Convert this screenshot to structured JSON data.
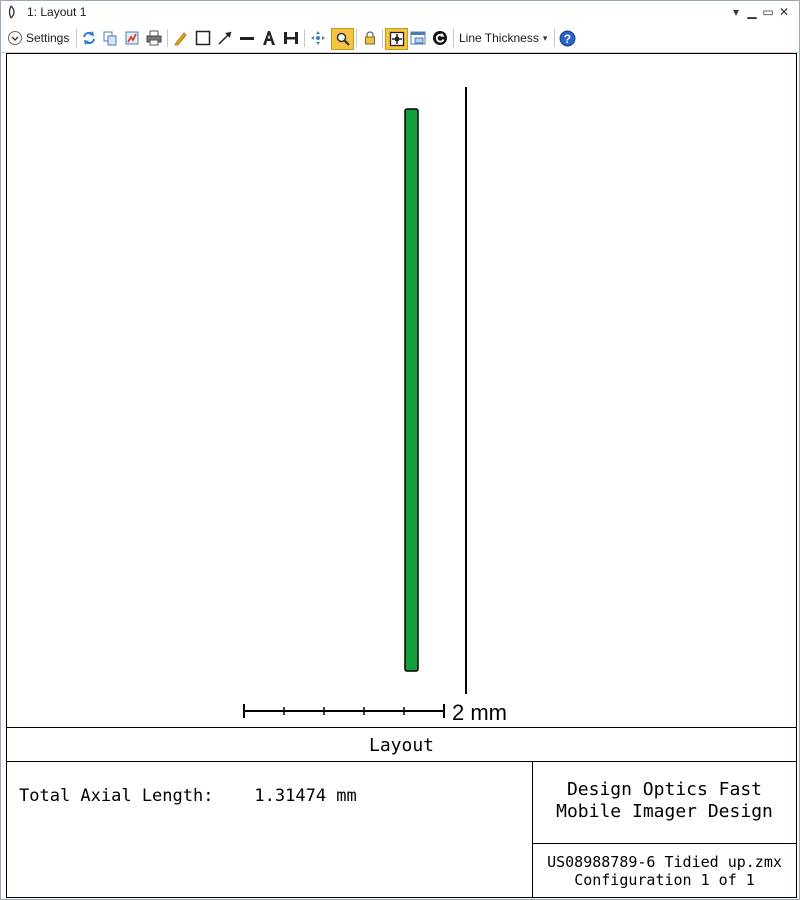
{
  "window": {
    "title": "1: Layout 1"
  },
  "toolbar": {
    "settings_label": "Settings",
    "line_thickness_label": "Line Thickness",
    "icons": [
      "refresh-icon",
      "copy-icon",
      "export-icon",
      "print-icon",
      "pencil-icon",
      "rectangle-icon",
      "arrow-icon",
      "line-icon",
      "text-icon",
      "dimension-icon",
      "pan-icon",
      "zoom-icon",
      "lock-icon",
      "fit-icon",
      "window-icon",
      "rotate-icon",
      "help-icon"
    ],
    "accent": "#f5c542"
  },
  "plot": {
    "lens_color": "#13a03c",
    "scale_bar_label": "2 mm"
  },
  "title_block": {
    "title": "Layout",
    "total_axial_length_label": "Total Axial Length:",
    "total_axial_length_value": "1.31474 mm",
    "design_name_line1": "Design Optics Fast",
    "design_name_line2": "Mobile Imager Design",
    "file_name": "US08988789-6 Tidied up.zmx",
    "configuration": "Configuration 1 of 1"
  }
}
